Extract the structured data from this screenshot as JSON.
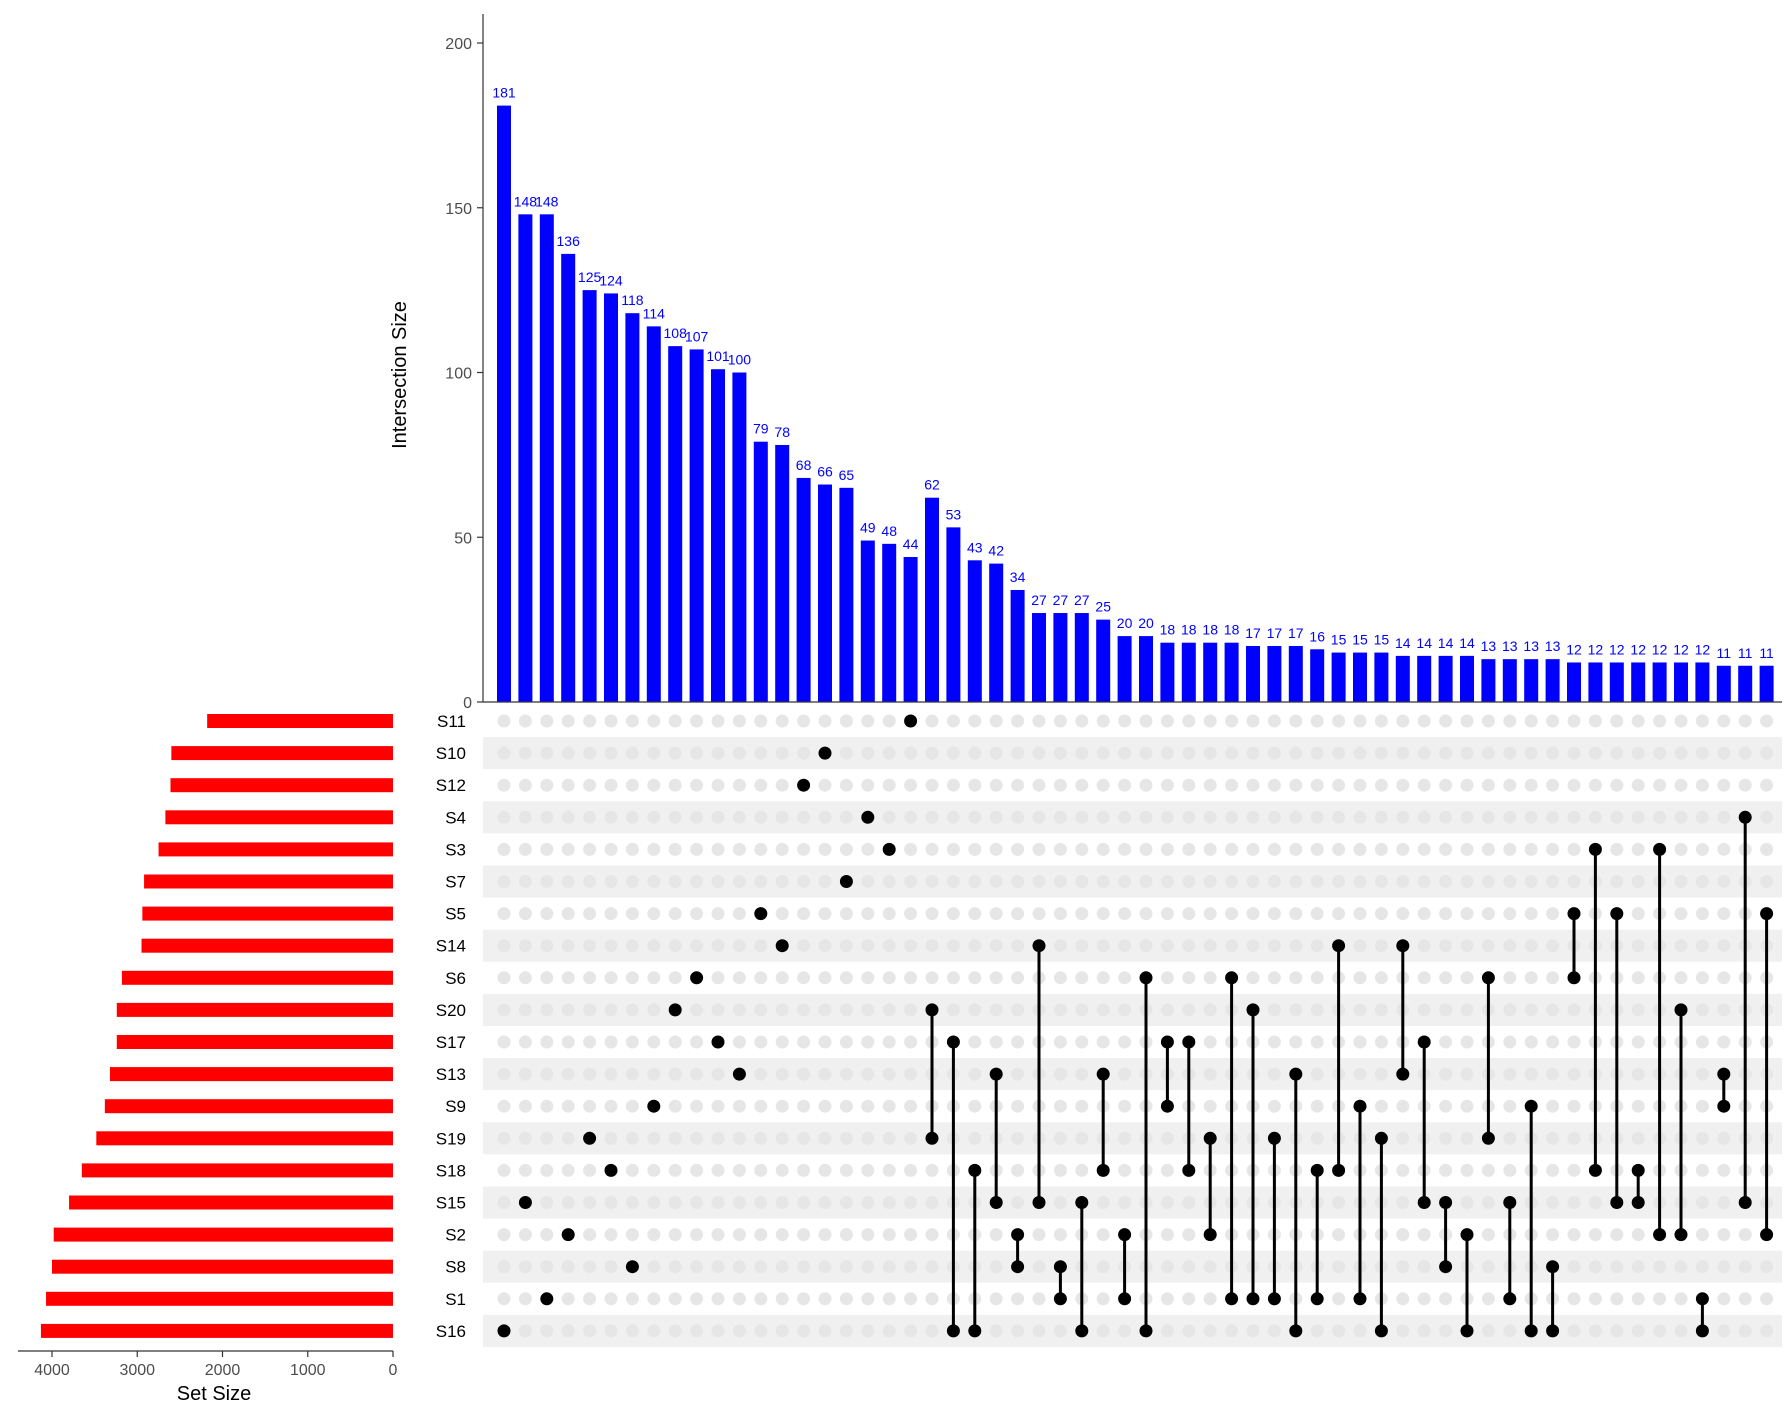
{
  "chart_data": {
    "type": "upset",
    "intersection_axis": {
      "ylabel": "Intersection Size",
      "ylim": [
        0,
        210
      ],
      "ticks": [
        0,
        50,
        100,
        150,
        200
      ]
    },
    "set_size_axis": {
      "xlabel": "Set Size",
      "xlim": [
        4400,
        0
      ],
      "ticks": [
        4000,
        3000,
        2000,
        1000,
        0
      ]
    },
    "colors": {
      "intersection_bars": "#0000ff",
      "set_bars": "#ff0000",
      "dots_active": "#000000",
      "dots_inactive": "#e6e6e6",
      "row_stripe": "#f0f0f0"
    },
    "sets": [
      "S11",
      "S10",
      "S12",
      "S4",
      "S3",
      "S7",
      "S5",
      "S14",
      "S6",
      "S20",
      "S17",
      "S13",
      "S9",
      "S19",
      "S18",
      "S15",
      "S2",
      "S8",
      "S1",
      "S16"
    ],
    "set_sizes": [
      2180,
      2600,
      2610,
      2670,
      2750,
      2920,
      2940,
      2950,
      3180,
      3240,
      3240,
      3320,
      3380,
      3480,
      3650,
      3800,
      3980,
      4000,
      4070,
      4130
    ],
    "intersections": [
      {
        "value": 181,
        "sets": [
          "S16"
        ]
      },
      {
        "value": 148,
        "sets": [
          "S15"
        ]
      },
      {
        "value": 148,
        "sets": [
          "S1"
        ]
      },
      {
        "value": 136,
        "sets": [
          "S2"
        ]
      },
      {
        "value": 125,
        "sets": [
          "S19"
        ]
      },
      {
        "value": 124,
        "sets": [
          "S18"
        ]
      },
      {
        "value": 118,
        "sets": [
          "S8"
        ]
      },
      {
        "value": 114,
        "sets": [
          "S9"
        ]
      },
      {
        "value": 108,
        "sets": [
          "S20"
        ]
      },
      {
        "value": 107,
        "sets": [
          "S6"
        ]
      },
      {
        "value": 101,
        "sets": [
          "S17"
        ]
      },
      {
        "value": 100,
        "sets": [
          "S13"
        ]
      },
      {
        "value": 79,
        "sets": [
          "S5"
        ]
      },
      {
        "value": 78,
        "sets": [
          "S14"
        ]
      },
      {
        "value": 68,
        "sets": [
          "S12"
        ]
      },
      {
        "value": 66,
        "sets": [
          "S10"
        ]
      },
      {
        "value": 65,
        "sets": [
          "S7"
        ]
      },
      {
        "value": 49,
        "sets": [
          "S4"
        ]
      },
      {
        "value": 48,
        "sets": [
          "S3"
        ]
      },
      {
        "value": 44,
        "sets": [
          "S11"
        ]
      },
      {
        "value": 62,
        "sets": [
          "S20",
          "S19"
        ]
      },
      {
        "value": 53,
        "sets": [
          "S17",
          "S16"
        ]
      },
      {
        "value": 43,
        "sets": [
          "S18",
          "S16"
        ]
      },
      {
        "value": 42,
        "sets": [
          "S13",
          "S15"
        ]
      },
      {
        "value": 34,
        "sets": [
          "S2",
          "S8"
        ]
      },
      {
        "value": 27,
        "sets": [
          "S14",
          "S15"
        ]
      },
      {
        "value": 27,
        "sets": [
          "S8",
          "S1"
        ]
      },
      {
        "value": 27,
        "sets": [
          "S15",
          "S16"
        ]
      },
      {
        "value": 25,
        "sets": [
          "S13",
          "S18"
        ]
      },
      {
        "value": 20,
        "sets": [
          "S2",
          "S1"
        ]
      },
      {
        "value": 20,
        "sets": [
          "S6",
          "S16"
        ]
      },
      {
        "value": 18,
        "sets": [
          "S17",
          "S9"
        ]
      },
      {
        "value": 18,
        "sets": [
          "S17",
          "S18"
        ]
      },
      {
        "value": 18,
        "sets": [
          "S19",
          "S2"
        ]
      },
      {
        "value": 18,
        "sets": [
          "S6",
          "S1"
        ]
      },
      {
        "value": 17,
        "sets": [
          "S20",
          "S1"
        ]
      },
      {
        "value": 17,
        "sets": [
          "S19",
          "S1"
        ]
      },
      {
        "value": 17,
        "sets": [
          "S13",
          "S16"
        ]
      },
      {
        "value": 16,
        "sets": [
          "S18",
          "S1"
        ]
      },
      {
        "value": 15,
        "sets": [
          "S14",
          "S18"
        ]
      },
      {
        "value": 15,
        "sets": [
          "S9",
          "S1"
        ]
      },
      {
        "value": 15,
        "sets": [
          "S19",
          "S16"
        ]
      },
      {
        "value": 14,
        "sets": [
          "S14",
          "S13"
        ]
      },
      {
        "value": 14,
        "sets": [
          "S17",
          "S15"
        ]
      },
      {
        "value": 14,
        "sets": [
          "S15",
          "S8"
        ]
      },
      {
        "value": 14,
        "sets": [
          "S2",
          "S16"
        ]
      },
      {
        "value": 13,
        "sets": [
          "S6",
          "S19"
        ]
      },
      {
        "value": 13,
        "sets": [
          "S15",
          "S1"
        ]
      },
      {
        "value": 13,
        "sets": [
          "S9",
          "S16"
        ]
      },
      {
        "value": 13,
        "sets": [
          "S8",
          "S16"
        ]
      },
      {
        "value": 12,
        "sets": [
          "S5",
          "S6"
        ]
      },
      {
        "value": 12,
        "sets": [
          "S3",
          "S18"
        ]
      },
      {
        "value": 12,
        "sets": [
          "S5",
          "S15"
        ]
      },
      {
        "value": 12,
        "sets": [
          "S18",
          "S15"
        ]
      },
      {
        "value": 12,
        "sets": [
          "S3",
          "S2"
        ]
      },
      {
        "value": 12,
        "sets": [
          "S20",
          "S2"
        ]
      },
      {
        "value": 12,
        "sets": [
          "S1",
          "S16"
        ]
      },
      {
        "value": 11,
        "sets": [
          "S13",
          "S9"
        ]
      },
      {
        "value": 11,
        "sets": [
          "S4",
          "S15"
        ]
      },
      {
        "value": 11,
        "sets": [
          "S5",
          "S2"
        ]
      }
    ]
  }
}
